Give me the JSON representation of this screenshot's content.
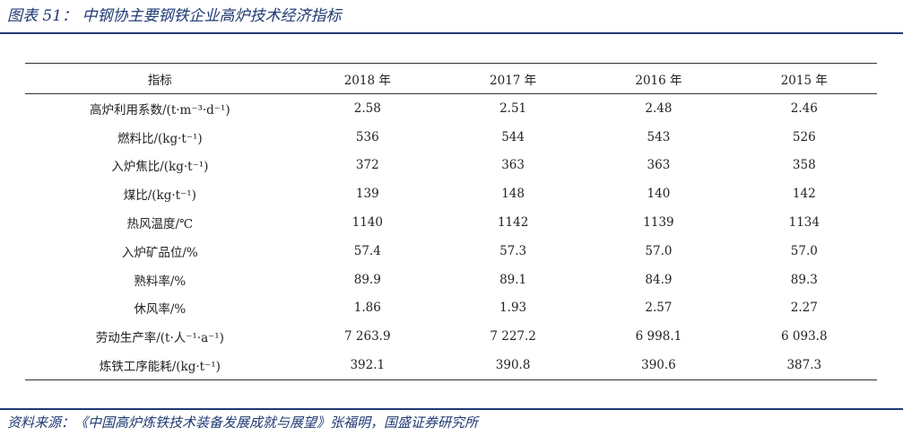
{
  "title": "图表 51：  中钢协主要钢铁企业高炉技术经济指标",
  "table": {
    "headers": [
      "指标",
      "2018 年",
      "2017 年",
      "2016 年",
      "2015 年"
    ],
    "rows": [
      [
        "高炉利用系数/(t·m⁻³·d⁻¹)",
        "2.58",
        "2.51",
        "2.48",
        "2.46"
      ],
      [
        "燃料比/(kg·t⁻¹)",
        "536",
        "544",
        "543",
        "526"
      ],
      [
        "入炉焦比/(kg·t⁻¹)",
        "372",
        "363",
        "363",
        "358"
      ],
      [
        "煤比/(kg·t⁻¹)",
        "139",
        "148",
        "140",
        "142"
      ],
      [
        "热风温度/℃",
        "1140",
        "1142",
        "1139",
        "1134"
      ],
      [
        "入炉矿品位/%",
        "57.4",
        "57.3",
        "57.0",
        "57.0"
      ],
      [
        "熟料率/%",
        "89.9",
        "89.1",
        "84.9",
        "89.3"
      ],
      [
        "休风率/%",
        "1.86",
        "1.93",
        "2.57",
        "2.27"
      ],
      [
        "劳动生产率/(t·人⁻¹·a⁻¹)",
        "7 263.9",
        "7 227.2",
        "6 998.1",
        "6 093.8"
      ],
      [
        "炼铁工序能耗/(kg·t⁻¹)",
        "392.1",
        "390.8",
        "390.6",
        "387.3"
      ]
    ]
  },
  "source": "资料来源：《中国高炉炼铁技术装备发展成就与展望》张福明，国盛证券研究所"
}
